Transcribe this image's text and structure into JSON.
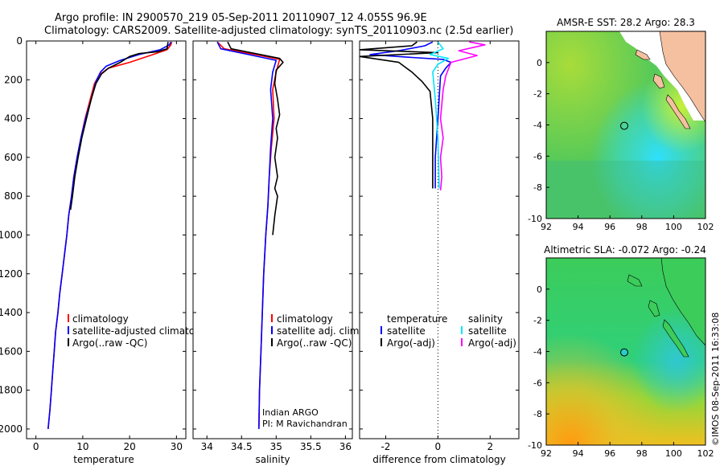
{
  "header": {
    "line1": "Argo profile: IN 2900570_219 05-Sep-2011 20110907_12 4.055S 96.9E",
    "line2": "Climatology: CARS2009. Satellite-adjusted climatology: synTS_20110903.nc (2.5d earlier)"
  },
  "side_stamp": "©IMOS 08-Sep-2011 16:33:08",
  "colors": {
    "climatology": "#ff0000",
    "satellite": "#0000ff",
    "argo": "#000000",
    "satellite_sal": "#00e5ff",
    "argo_sal": "#ff00ff",
    "land": "#f4c0a0",
    "nodata": "#ffffff"
  },
  "chart_data": [
    {
      "type": "line",
      "xlabel": "temperature",
      "xlim": [
        -2,
        32
      ],
      "ylim": [
        2050,
        0
      ],
      "xticks": [
        0,
        10,
        20,
        30
      ],
      "yticks": [
        0,
        200,
        400,
        600,
        800,
        1000,
        1200,
        1400,
        1600,
        1800,
        2000
      ],
      "legend": [
        "climatology",
        "satellite-adjusted climatology",
        "Argo(..raw -QC)"
      ],
      "series": [
        {
          "name": "climatology",
          "color": "climatology",
          "points": [
            [
              29.0,
              5
            ],
            [
              28.8,
              20
            ],
            [
              28.0,
              45
            ],
            [
              25.0,
              70
            ],
            [
              20.0,
              110
            ],
            [
              15.5,
              140
            ],
            [
              13.5,
              175
            ],
            [
              12.5,
              220
            ],
            [
              11.6,
              300
            ],
            [
              10.5,
              400
            ],
            [
              9.6,
              500
            ],
            [
              8.8,
              600
            ],
            [
              8.1,
              700
            ],
            [
              7.6,
              800
            ],
            [
              7.0,
              900
            ],
            [
              6.6,
              1000
            ],
            [
              6.1,
              1100
            ],
            [
              5.6,
              1200
            ],
            [
              5.1,
              1300
            ],
            [
              4.7,
              1400
            ],
            [
              4.2,
              1500
            ],
            [
              3.9,
              1600
            ],
            [
              3.6,
              1700
            ],
            [
              3.3,
              1800
            ],
            [
              3.0,
              1900
            ],
            [
              2.6,
              2000
            ]
          ]
        },
        {
          "name": "satellite-adjusted climatology",
          "color": "satellite",
          "points": [
            [
              28.8,
              5
            ],
            [
              28.5,
              20
            ],
            [
              26.5,
              45
            ],
            [
              22.0,
              70
            ],
            [
              18.0,
              100
            ],
            [
              15.0,
              130
            ],
            [
              13.8,
              160
            ],
            [
              12.8,
              210
            ],
            [
              11.8,
              300
            ],
            [
              10.6,
              400
            ],
            [
              9.6,
              500
            ],
            [
              8.8,
              600
            ],
            [
              8.1,
              700
            ],
            [
              7.6,
              800
            ],
            [
              7.0,
              900
            ],
            [
              6.6,
              1000
            ],
            [
              6.1,
              1100
            ],
            [
              5.6,
              1200
            ],
            [
              5.1,
              1300
            ],
            [
              4.7,
              1400
            ],
            [
              4.2,
              1500
            ],
            [
              3.9,
              1600
            ],
            [
              3.6,
              1700
            ],
            [
              3.3,
              1800
            ],
            [
              3.0,
              1900
            ],
            [
              2.6,
              2000
            ]
          ]
        },
        {
          "name": "Argo(..raw -QC)",
          "color": "argo",
          "points": [
            [
              28.2,
              5
            ],
            [
              28.0,
              40
            ],
            [
              26.0,
              55
            ],
            [
              22.0,
              65
            ],
            [
              20.0,
              80
            ],
            [
              18.0,
              110
            ],
            [
              15.5,
              140
            ],
            [
              14.0,
              170
            ],
            [
              12.8,
              220
            ],
            [
              11.8,
              300
            ],
            [
              10.8,
              400
            ],
            [
              9.8,
              500
            ],
            [
              9.0,
              600
            ],
            [
              8.3,
              700
            ],
            [
              7.8,
              800
            ],
            [
              7.4,
              870
            ]
          ]
        }
      ]
    },
    {
      "type": "line",
      "xlabel": "salinity",
      "xlim": [
        33.8,
        36.1
      ],
      "ylim": [
        2050,
        0
      ],
      "xticks": [
        34,
        34.5,
        35,
        35.5,
        36
      ],
      "yticks": [
        0,
        200,
        400,
        600,
        800,
        1000,
        1200,
        1400,
        1600,
        1800,
        2000
      ],
      "legend": [
        "climatology",
        "satellite adj. clim.",
        "Argo(..raw -QC)"
      ],
      "annotation": [
        "Indian ARGO",
        "PI: M Ravichandran"
      ],
      "series": [
        {
          "name": "climatology",
          "color": "climatology",
          "points": [
            [
              34.15,
              5
            ],
            [
              34.25,
              40
            ],
            [
              34.7,
              70
            ],
            [
              35.05,
              95
            ],
            [
              35.0,
              160
            ],
            [
              34.95,
              250
            ],
            [
              34.97,
              400
            ],
            [
              34.93,
              550
            ],
            [
              34.9,
              700
            ],
            [
              34.88,
              850
            ],
            [
              34.85,
              1000
            ],
            [
              34.82,
              1200
            ],
            [
              34.8,
              1400
            ],
            [
              34.78,
              1600
            ],
            [
              34.76,
              1800
            ],
            [
              34.75,
              2000
            ]
          ]
        },
        {
          "name": "satellite adj. clim.",
          "color": "satellite",
          "points": [
            [
              34.15,
              5
            ],
            [
              34.2,
              40
            ],
            [
              34.6,
              70
            ],
            [
              35.0,
              100
            ],
            [
              34.95,
              160
            ],
            [
              34.92,
              250
            ],
            [
              34.95,
              400
            ],
            [
              34.92,
              550
            ],
            [
              34.9,
              700
            ],
            [
              34.88,
              850
            ],
            [
              34.85,
              1000
            ],
            [
              34.82,
              1200
            ],
            [
              34.8,
              1400
            ],
            [
              34.78,
              1600
            ],
            [
              34.76,
              1800
            ],
            [
              34.75,
              2000
            ]
          ]
        },
        {
          "name": "Argo(..raw -QC)",
          "color": "argo",
          "points": [
            [
              34.3,
              5
            ],
            [
              34.35,
              40
            ],
            [
              34.7,
              65
            ],
            [
              35.05,
              90
            ],
            [
              35.1,
              110
            ],
            [
              35.0,
              150
            ],
            [
              34.98,
              220
            ],
            [
              35.02,
              300
            ],
            [
              35.05,
              380
            ],
            [
              35.0,
              450
            ],
            [
              35.02,
              500
            ],
            [
              34.98,
              600
            ],
            [
              35.02,
              700
            ],
            [
              34.98,
              760
            ],
            [
              35.02,
              800
            ],
            [
              34.98,
              900
            ],
            [
              34.95,
              1000
            ]
          ]
        }
      ]
    },
    {
      "type": "line",
      "xlabel": "difference from climatology",
      "xlim": [
        -3,
        3.1
      ],
      "ylim": [
        2050,
        0
      ],
      "xticks": [
        -2,
        0,
        2
      ],
      "yticks": [
        0,
        200,
        400,
        600,
        800,
        1000,
        1200,
        1400,
        1600,
        1800,
        2000
      ],
      "legend_headers": [
        "temperature",
        "salinity"
      ],
      "legend_temperature": [
        "satellite",
        "Argo(-adj)"
      ],
      "legend_salinity": [
        "satellite",
        "Argo(-adj)"
      ],
      "series": [
        {
          "name": "temperature satellite",
          "color": "satellite",
          "points": [
            [
              -0.2,
              5
            ],
            [
              -0.5,
              25
            ],
            [
              -1.5,
              50
            ],
            [
              -2.6,
              70
            ],
            [
              -1.0,
              85
            ],
            [
              0.2,
              95
            ],
            [
              0.5,
              110
            ],
            [
              0.3,
              140
            ],
            [
              0.1,
              180
            ],
            [
              0.0,
              400
            ],
            [
              -0.1,
              600
            ],
            [
              -0.1,
              760
            ]
          ]
        },
        {
          "name": "temperature Argo(-adj)",
          "color": "argo",
          "points": [
            [
              -0.8,
              5
            ],
            [
              -1.0,
              25
            ],
            [
              -3.0,
              45
            ],
            [
              -1.0,
              55
            ],
            [
              0.0,
              60
            ],
            [
              -3.0,
              80
            ],
            [
              -1.5,
              110
            ],
            [
              -1.0,
              160
            ],
            [
              -0.6,
              210
            ],
            [
              -0.3,
              260
            ],
            [
              -0.2,
              400
            ],
            [
              -0.2,
              600
            ],
            [
              -0.2,
              760
            ]
          ]
        },
        {
          "name": "salinity satellite",
          "color": "satellite_sal",
          "points": [
            [
              0.0,
              5
            ],
            [
              0.2,
              40
            ],
            [
              -0.3,
              70
            ],
            [
              0.4,
              90
            ],
            [
              0.0,
              120
            ],
            [
              -0.2,
              160
            ],
            [
              -0.1,
              300
            ],
            [
              0.0,
              500
            ],
            [
              0.05,
              760
            ]
          ]
        },
        {
          "name": "salinity Argo(-adj)",
          "color": "argo_sal",
          "points": [
            [
              1.2,
              5
            ],
            [
              1.8,
              20
            ],
            [
              0.8,
              50
            ],
            [
              1.5,
              75
            ],
            [
              0.5,
              110
            ],
            [
              0.3,
              180
            ],
            [
              0.2,
              250
            ],
            [
              0.1,
              400
            ],
            [
              0.2,
              500
            ],
            [
              0.1,
              600
            ],
            [
              0.15,
              700
            ],
            [
              0.1,
              770
            ]
          ]
        }
      ]
    },
    {
      "type": "heatmap",
      "title": "AMSR-E SST: 28.2 Argo: 28.3",
      "xlim": [
        92,
        102
      ],
      "ylim": [
        -10,
        2
      ],
      "xticks": [
        92,
        94,
        96,
        98,
        100,
        102
      ],
      "yticks": [
        0,
        -2,
        -4,
        -6,
        -8,
        -10
      ],
      "argo_position": [
        96.9,
        -4.055
      ]
    },
    {
      "type": "heatmap",
      "title": "Altimetric SLA: -0.072 Argo: -0.24",
      "xlim": [
        92,
        102
      ],
      "ylim": [
        -10,
        2
      ],
      "xticks": [
        92,
        94,
        96,
        98,
        100,
        102
      ],
      "yticks": [
        0,
        -2,
        -4,
        -6,
        -8,
        -10
      ],
      "argo_position": [
        96.9,
        -4.055
      ]
    }
  ]
}
